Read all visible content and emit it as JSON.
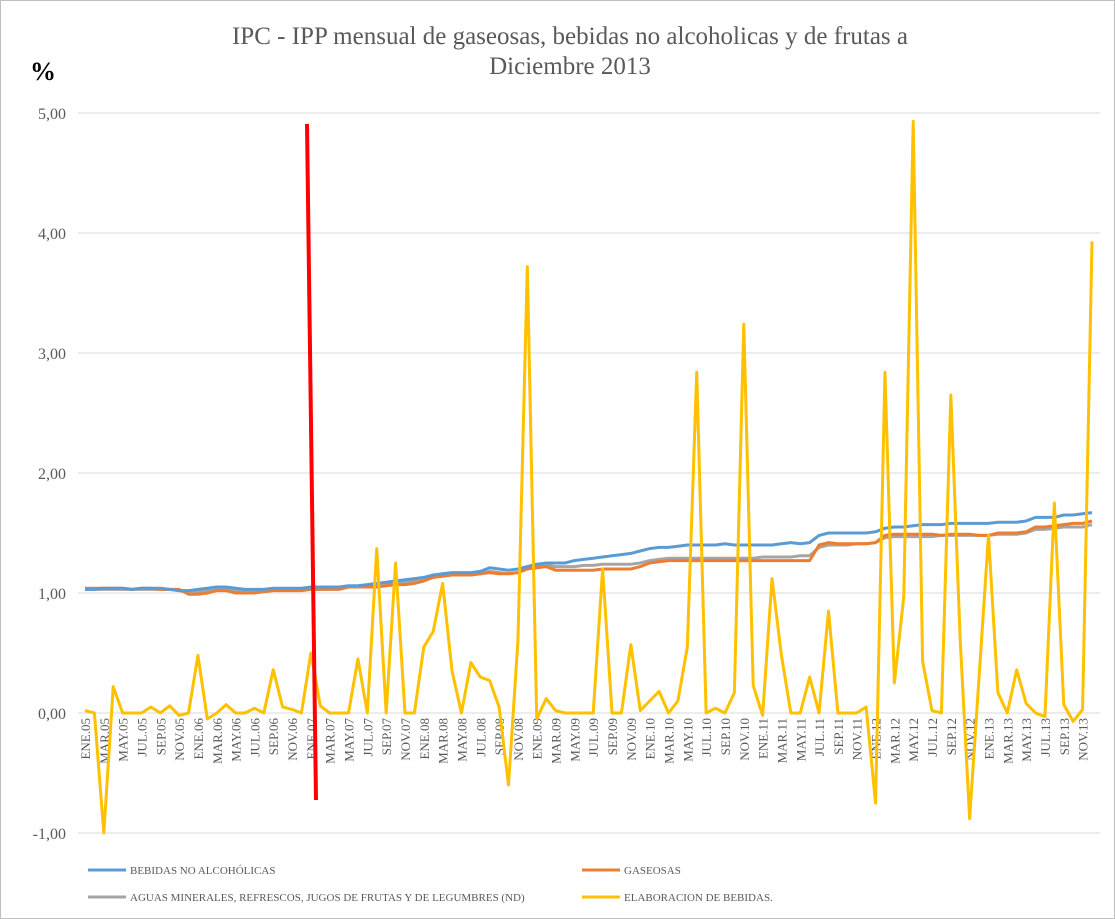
{
  "chart_data": {
    "type": "line",
    "title": "IPC - IPP  mensual de gaseosas, bebidas no alcoholicas y de frutas a Diciembre 2013",
    "y_label": "%",
    "categories": [
      "ENE.05",
      null,
      "MAR.05",
      null,
      "MAY.05",
      null,
      "JUL.05",
      null,
      "SEP.05",
      null,
      "NOV.05",
      null,
      "ENE.06",
      null,
      "MAR.06",
      null,
      "MAY.06",
      null,
      "JUL.06",
      null,
      "SEP.06",
      null,
      "NOV.06",
      null,
      "ENE.07",
      null,
      "MAR.07",
      null,
      "MAY.07",
      null,
      "JUL.07",
      null,
      "SEP.07",
      null,
      "NOV.07",
      null,
      "ENE.08",
      null,
      "MAR.08",
      null,
      "MAY.08",
      null,
      "JUL.08",
      null,
      "SEP.08",
      null,
      "NOV.08",
      null,
      "ENE.09",
      null,
      "MAR.09",
      null,
      "MAY.09",
      null,
      "JUL.09",
      null,
      "SEP.09",
      null,
      "NOV.09",
      null,
      "ENE.10",
      null,
      "MAR.10",
      null,
      "MAY.10",
      null,
      "JUL.10",
      null,
      "SEP.10",
      null,
      "NOV.10",
      null,
      "ENE.11",
      null,
      "MAR.11",
      null,
      "MAY.11",
      null,
      "JUL.11",
      null,
      "SEP.11",
      null,
      "NOV.11",
      null,
      "ENE.12",
      null,
      "MAR.12",
      null,
      "MAY.12",
      null,
      "JUL.12",
      null,
      "SEP.12",
      null,
      "NOV.12",
      null,
      "ENE.13",
      null,
      "MAR.13",
      null,
      "MAY.13",
      null,
      "JUL.13",
      null,
      "SEP.13",
      null,
      "NOV.13",
      null
    ],
    "series": [
      {
        "name": "BEBIDAS NO ALCOHÓLICAS",
        "color": "#5b9bd5",
        "values": [
          1.03,
          1.03,
          1.04,
          1.04,
          1.04,
          1.03,
          1.04,
          1.04,
          1.04,
          1.03,
          1.02,
          1.02,
          1.03,
          1.04,
          1.05,
          1.05,
          1.04,
          1.03,
          1.03,
          1.03,
          1.04,
          1.04,
          1.04,
          1.04,
          1.05,
          1.05,
          1.05,
          1.05,
          1.06,
          1.06,
          1.07,
          1.08,
          1.09,
          1.1,
          1.11,
          1.12,
          1.13,
          1.15,
          1.16,
          1.17,
          1.17,
          1.17,
          1.18,
          1.21,
          1.2,
          1.19,
          1.2,
          1.22,
          1.24,
          1.25,
          1.25,
          1.25,
          1.27,
          1.28,
          1.29,
          1.3,
          1.31,
          1.32,
          1.33,
          1.35,
          1.37,
          1.38,
          1.38,
          1.39,
          1.4,
          1.4,
          1.4,
          1.4,
          1.41,
          1.4,
          1.4,
          1.4,
          1.4,
          1.4,
          1.41,
          1.42,
          1.41,
          1.42,
          1.48,
          1.5,
          1.5,
          1.5,
          1.5,
          1.5,
          1.51,
          1.54,
          1.55,
          1.55,
          1.56,
          1.57,
          1.57,
          1.57,
          1.58,
          1.58,
          1.58,
          1.58,
          1.58,
          1.59,
          1.59,
          1.59,
          1.6,
          1.63,
          1.63,
          1.63,
          1.65,
          1.65,
          1.66,
          1.67
        ]
      },
      {
        "name": "GASEOSAS",
        "color": "#ed7d31",
        "values": [
          1.04,
          1.04,
          1.04,
          1.04,
          1.04,
          1.03,
          1.04,
          1.04,
          1.03,
          1.03,
          1.03,
          0.99,
          0.99,
          1.0,
          1.02,
          1.02,
          1.0,
          1.0,
          1.0,
          1.01,
          1.02,
          1.02,
          1.02,
          1.02,
          1.03,
          1.03,
          1.03,
          1.03,
          1.05,
          1.05,
          1.05,
          1.05,
          1.06,
          1.07,
          1.07,
          1.08,
          1.1,
          1.13,
          1.14,
          1.15,
          1.15,
          1.15,
          1.16,
          1.17,
          1.16,
          1.16,
          1.17,
          1.2,
          1.21,
          1.22,
          1.19,
          1.19,
          1.19,
          1.19,
          1.19,
          1.2,
          1.2,
          1.2,
          1.2,
          1.22,
          1.25,
          1.26,
          1.27,
          1.27,
          1.27,
          1.27,
          1.27,
          1.27,
          1.27,
          1.27,
          1.27,
          1.27,
          1.27,
          1.27,
          1.27,
          1.27,
          1.27,
          1.27,
          1.4,
          1.42,
          1.41,
          1.41,
          1.41,
          1.41,
          1.42,
          1.48,
          1.49,
          1.49,
          1.49,
          1.49,
          1.49,
          1.48,
          1.49,
          1.49,
          1.49,
          1.48,
          1.48,
          1.5,
          1.5,
          1.5,
          1.51,
          1.55,
          1.55,
          1.56,
          1.57,
          1.58,
          1.58,
          1.6
        ]
      },
      {
        "name": "AGUAS MINERALES, REFRESCOS, JUGOS DE FRUTAS Y DE LEGUMBRES (ND)",
        "color": "#a5a5a5",
        "values": [
          1.03,
          1.03,
          1.03,
          1.03,
          1.03,
          1.03,
          1.03,
          1.03,
          1.03,
          1.03,
          1.02,
          1.01,
          1.01,
          1.02,
          1.03,
          1.03,
          1.02,
          1.01,
          1.02,
          1.02,
          1.03,
          1.03,
          1.03,
          1.03,
          1.03,
          1.03,
          1.04,
          1.04,
          1.05,
          1.05,
          1.06,
          1.06,
          1.07,
          1.08,
          1.09,
          1.1,
          1.12,
          1.14,
          1.15,
          1.15,
          1.15,
          1.15,
          1.16,
          1.18,
          1.17,
          1.16,
          1.17,
          1.2,
          1.22,
          1.23,
          1.22,
          1.22,
          1.22,
          1.23,
          1.23,
          1.24,
          1.24,
          1.24,
          1.24,
          1.25,
          1.27,
          1.28,
          1.29,
          1.29,
          1.29,
          1.29,
          1.29,
          1.29,
          1.29,
          1.29,
          1.29,
          1.29,
          1.3,
          1.3,
          1.3,
          1.3,
          1.31,
          1.31,
          1.38,
          1.4,
          1.4,
          1.4,
          1.41,
          1.41,
          1.42,
          1.46,
          1.47,
          1.47,
          1.47,
          1.47,
          1.47,
          1.48,
          1.48,
          1.48,
          1.48,
          1.48,
          1.48,
          1.49,
          1.49,
          1.49,
          1.5,
          1.53,
          1.53,
          1.54,
          1.55,
          1.55,
          1.55,
          1.57
        ]
      },
      {
        "name": "ELABORACION DE BEBIDAS.",
        "color": "#ffc000",
        "values": [
          0.02,
          0,
          -1.0,
          0.22,
          0,
          0,
          0,
          0.05,
          0,
          0.06,
          -0.02,
          0,
          0.48,
          -0.05,
          0,
          0.07,
          0,
          0,
          0.04,
          0,
          0.36,
          0.05,
          0.03,
          0,
          0.5,
          0.06,
          0,
          0,
          0,
          0.45,
          0,
          1.37,
          0,
          1.25,
          0,
          0,
          0.55,
          0.68,
          1.08,
          0.35,
          0,
          0.42,
          0.3,
          0.27,
          0.05,
          -0.6,
          0.6,
          3.72,
          -0.05,
          0.12,
          0.02,
          0,
          0,
          0,
          0,
          1.2,
          0,
          0,
          0.57,
          0.02,
          0.1,
          0.18,
          0,
          0.1,
          0.55,
          2.84,
          0,
          0.04,
          0,
          0.17,
          3.24,
          0.23,
          -0.02,
          1.12,
          0.48,
          0,
          0,
          0.3,
          0,
          0.85,
          0,
          0,
          0,
          0.05,
          -0.75,
          2.84,
          0.25,
          0.97,
          4.93,
          0.43,
          0.02,
          0,
          2.65,
          0.6,
          -0.88,
          0.3,
          1.48,
          0.17,
          0,
          0.36,
          0.08,
          0,
          -0.03,
          1.75,
          0.07,
          -0.07,
          0.03,
          3.93
        ]
      }
    ],
    "ylim": [
      -1,
      5
    ],
    "yticks": [
      {
        "value": -1,
        "label": "-1,00"
      },
      {
        "value": 0,
        "label": "0,00"
      },
      {
        "value": 1,
        "label": "1,00"
      },
      {
        "value": 2,
        "label": "2,00"
      },
      {
        "value": 3,
        "label": "3,00"
      },
      {
        "value": 4,
        "label": "4,00"
      },
      {
        "value": 5,
        "label": "5,00"
      }
    ],
    "grid": true,
    "legend": "bottom"
  }
}
